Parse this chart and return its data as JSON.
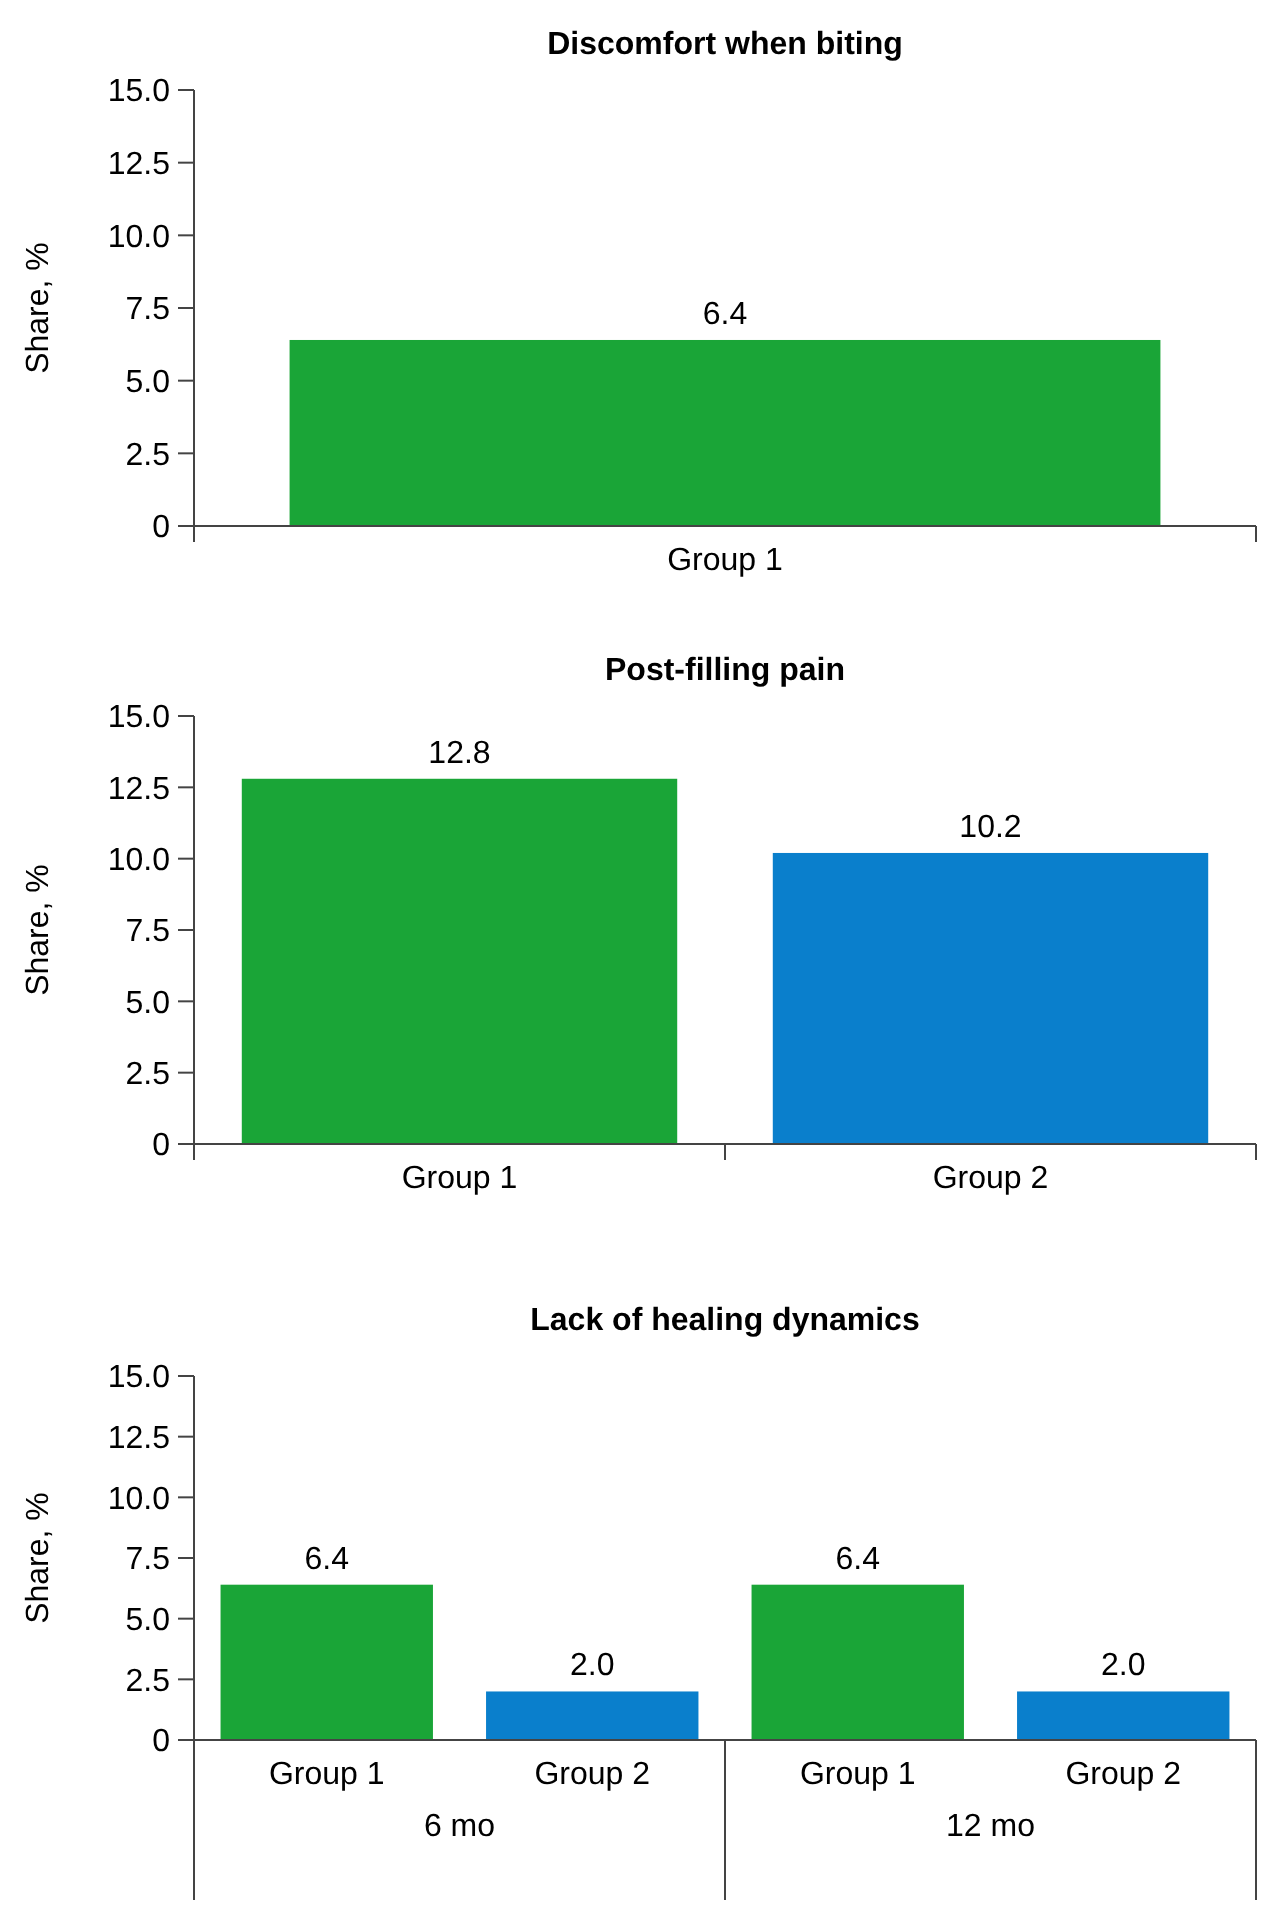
{
  "chart_data": [
    {
      "type": "bar",
      "title": "Discomfort when biting",
      "ylabel": "Share, %",
      "categories": [
        "Group 1"
      ],
      "values": [
        6.4
      ],
      "colors": [
        "#1aa537"
      ],
      "value_labels": [
        "6.4"
      ],
      "ylim": [
        0,
        15
      ],
      "yticks": [
        0,
        2.5,
        {
          "value": 5,
          "label": "5.0"
        },
        7.5,
        {
          "value": 10,
          "label": "10.0"
        },
        12.5,
        {
          "value": 15,
          "label": "15.0"
        }
      ]
    },
    {
      "type": "bar",
      "title": "Post-filling pain",
      "ylabel": "Share, %",
      "categories": [
        "Group 1",
        "Group 2"
      ],
      "values": [
        12.8,
        10.2
      ],
      "colors": [
        "#1aa537",
        "#0a7fcc"
      ],
      "value_labels": [
        "12.8",
        "10.2"
      ],
      "ylim": [
        0,
        15
      ],
      "yticks": [
        0,
        2.5,
        {
          "value": 5,
          "label": "5.0"
        },
        7.5,
        {
          "value": 10,
          "label": "10.0"
        },
        12.5,
        {
          "value": 15,
          "label": "15.0"
        }
      ]
    },
    {
      "type": "bar",
      "title": "Lack of healing dynamics",
      "ylabel": "Share, %",
      "categories": [
        "Group 1",
        "Group 2",
        "Group 1",
        "Group 2"
      ],
      "values": [
        6.4,
        2.0,
        6.4,
        2.0
      ],
      "colors": [
        "#1aa537",
        "#0a7fcc",
        "#1aa537",
        "#0a7fcc"
      ],
      "value_labels": [
        "6.4",
        "2.0",
        "6.4",
        "2.0"
      ],
      "annotations": [
        "6 mo",
        "12 mo"
      ],
      "ylim": [
        0,
        15
      ],
      "yticks": [
        0,
        2.5,
        {
          "value": 5,
          "label": "5.0"
        },
        7.5,
        {
          "value": 10,
          "label": "10.0"
        },
        12.5,
        {
          "value": 15,
          "label": "15.0"
        }
      ]
    }
  ]
}
